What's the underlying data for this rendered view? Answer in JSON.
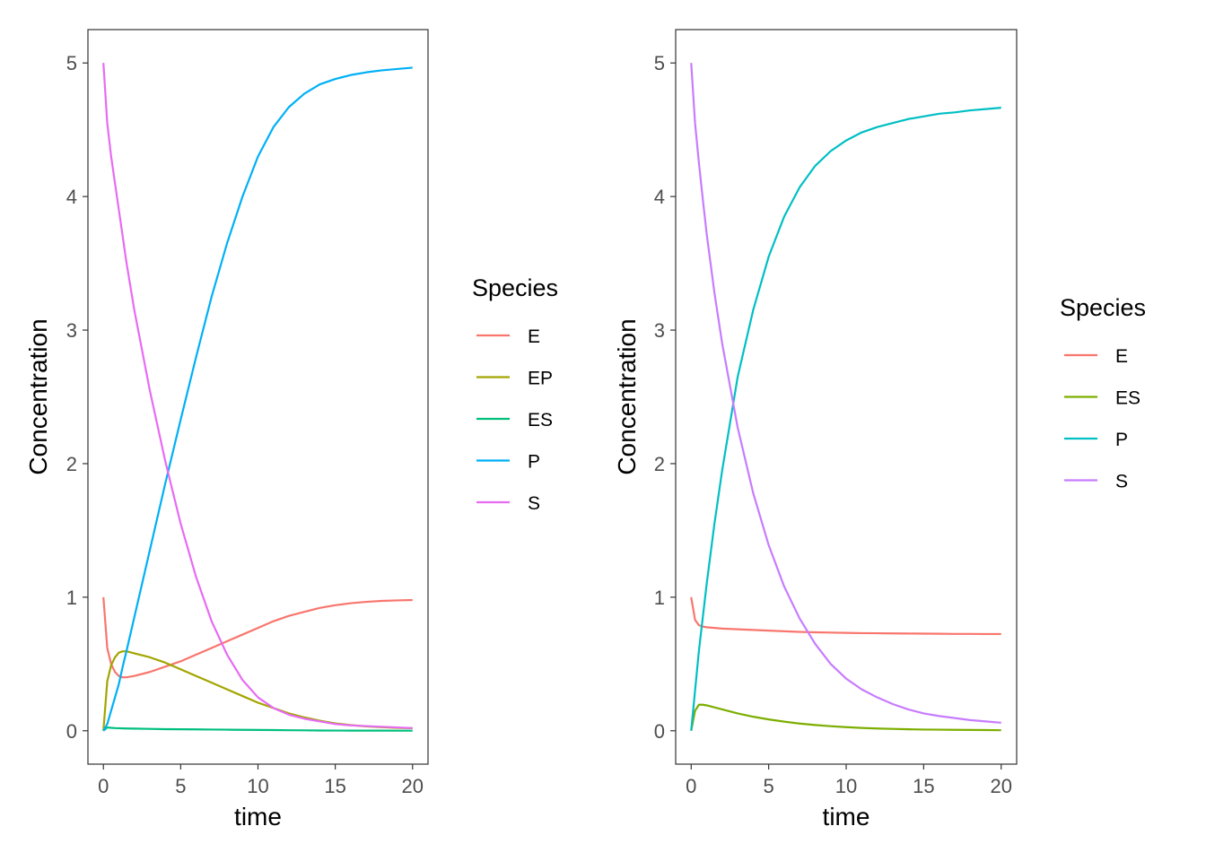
{
  "chart_data": [
    {
      "type": "line",
      "xlabel": "time",
      "ylabel": "Concentration",
      "xlim": [
        0,
        20
      ],
      "ylim": [
        0,
        5
      ],
      "xticks": [
        "0",
        "5",
        "10",
        "15",
        "20"
      ],
      "yticks": [
        "0",
        "1",
        "2",
        "3",
        "4",
        "5"
      ],
      "grid": false,
      "legend_title": "Species",
      "legend_position": "right",
      "x": [
        0,
        0.25,
        0.5,
        0.75,
        1,
        1.25,
        1.5,
        2,
        3,
        4,
        5,
        6,
        7,
        8,
        9,
        10,
        11,
        12,
        13,
        14,
        15,
        16,
        17,
        18,
        19,
        20
      ],
      "series": [
        {
          "name": "E",
          "color": "#F8766D",
          "values": [
            1.0,
            0.62,
            0.5,
            0.44,
            0.41,
            0.4,
            0.4,
            0.41,
            0.44,
            0.48,
            0.52,
            0.57,
            0.62,
            0.67,
            0.72,
            0.77,
            0.82,
            0.86,
            0.89,
            0.92,
            0.94,
            0.955,
            0.965,
            0.972,
            0.976,
            0.979
          ]
        },
        {
          "name": "EP",
          "color": "#A3A500",
          "values": [
            0.0,
            0.37,
            0.49,
            0.55,
            0.585,
            0.595,
            0.595,
            0.58,
            0.55,
            0.51,
            0.46,
            0.41,
            0.36,
            0.31,
            0.26,
            0.21,
            0.17,
            0.13,
            0.1,
            0.075,
            0.055,
            0.042,
            0.033,
            0.027,
            0.022,
            0.019
          ]
        },
        {
          "name": "ES",
          "color": "#00BF7D",
          "values": [
            0.0,
            0.025,
            0.022,
            0.02,
            0.019,
            0.018,
            0.017,
            0.016,
            0.014,
            0.012,
            0.011,
            0.01,
            0.009,
            0.008,
            0.007,
            0.006,
            0.005,
            0.004,
            0.003,
            0.002,
            0.0015,
            0.001,
            0.001,
            0.0008,
            0.0006,
            0.0005
          ]
        },
        {
          "name": "P",
          "color": "#00B0F6",
          "values": [
            0.0,
            0.05,
            0.15,
            0.25,
            0.35,
            0.48,
            0.6,
            0.85,
            1.35,
            1.85,
            2.33,
            2.8,
            3.25,
            3.65,
            4.0,
            4.3,
            4.52,
            4.67,
            4.77,
            4.84,
            4.88,
            4.91,
            4.93,
            4.945,
            4.955,
            4.965
          ]
        },
        {
          "name": "S",
          "color": "#E76BF3",
          "values": [
            5.0,
            4.55,
            4.3,
            4.1,
            3.9,
            3.7,
            3.5,
            3.15,
            2.55,
            2.02,
            1.55,
            1.15,
            0.82,
            0.57,
            0.38,
            0.25,
            0.17,
            0.12,
            0.09,
            0.07,
            0.05,
            0.04,
            0.035,
            0.03,
            0.025,
            0.02
          ]
        }
      ]
    },
    {
      "type": "line",
      "xlabel": "time",
      "ylabel": "Concentration",
      "xlim": [
        0,
        20
      ],
      "ylim": [
        0,
        5
      ],
      "xticks": [
        "0",
        "5",
        "10",
        "15",
        "20"
      ],
      "yticks": [
        "0",
        "1",
        "2",
        "3",
        "4",
        "5"
      ],
      "grid": false,
      "legend_title": "Species",
      "legend_position": "right",
      "x": [
        0,
        0.25,
        0.5,
        0.75,
        1,
        1.5,
        2,
        3,
        4,
        5,
        6,
        7,
        8,
        9,
        10,
        11,
        12,
        13,
        14,
        15,
        16,
        17,
        18,
        19,
        20
      ],
      "series": [
        {
          "name": "E",
          "color": "#F8766D",
          "values": [
            1.0,
            0.83,
            0.79,
            0.78,
            0.775,
            0.77,
            0.765,
            0.76,
            0.755,
            0.75,
            0.745,
            0.74,
            0.737,
            0.735,
            0.733,
            0.731,
            0.73,
            0.729,
            0.728,
            0.727,
            0.726,
            0.725,
            0.725,
            0.724,
            0.724
          ]
        },
        {
          "name": "ES",
          "color": "#7CAE00",
          "values": [
            0.0,
            0.15,
            0.195,
            0.195,
            0.19,
            0.175,
            0.16,
            0.13,
            0.105,
            0.085,
            0.068,
            0.054,
            0.043,
            0.034,
            0.027,
            0.021,
            0.017,
            0.014,
            0.011,
            0.009,
            0.008,
            0.007,
            0.006,
            0.005,
            0.004
          ]
        },
        {
          "name": "P",
          "color": "#00BFC4",
          "values": [
            0.0,
            0.3,
            0.6,
            0.85,
            1.1,
            1.55,
            1.95,
            2.65,
            3.15,
            3.55,
            3.85,
            4.07,
            4.23,
            4.34,
            4.42,
            4.48,
            4.52,
            4.55,
            4.58,
            4.6,
            4.62,
            4.63,
            4.645,
            4.655,
            4.665
          ]
        },
        {
          "name": "S",
          "color": "#C77CFF",
          "values": [
            5.0,
            4.55,
            4.25,
            3.98,
            3.72,
            3.28,
            2.9,
            2.27,
            1.78,
            1.39,
            1.08,
            0.84,
            0.65,
            0.5,
            0.39,
            0.31,
            0.25,
            0.2,
            0.16,
            0.13,
            0.11,
            0.095,
            0.08,
            0.07,
            0.06
          ]
        }
      ]
    }
  ]
}
